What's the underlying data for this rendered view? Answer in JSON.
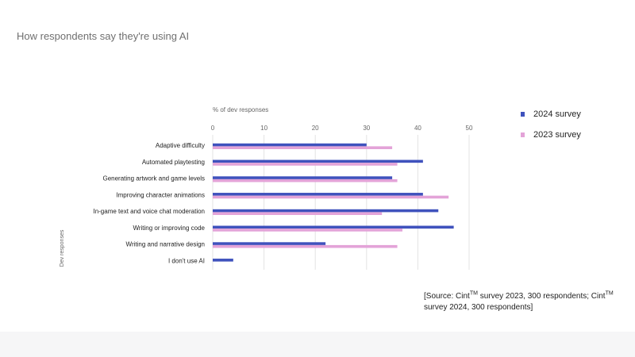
{
  "page_title": "How respondents say they're using AI",
  "colors": {
    "series_2024": "#3f52bd",
    "series_2023": "#e3a3d8",
    "grid": "#e3e3e3",
    "axis_text": "#666666"
  },
  "legend": {
    "items": [
      {
        "label": "2024 survey"
      },
      {
        "label": "2023 survey"
      }
    ]
  },
  "source": {
    "prefix": "[Source: Cint",
    "tm1": "TM",
    "middle": " survey 2023, 300 respondents; Cint",
    "tm2": "TM",
    "suffix": " survey 2024, 300 respondents]"
  },
  "chart_data": {
    "type": "bar",
    "orientation": "horizontal",
    "title": "How respondents say they're using AI",
    "xlabel": "% of dev responses",
    "ylabel": "Dev responses",
    "xlim": [
      0,
      50
    ],
    "xticks": [
      0,
      10,
      20,
      30,
      40,
      50
    ],
    "grid": true,
    "legend_position": "right",
    "categories": [
      "Adaptive difficulty",
      "Automated playtesting",
      "Generating artwork and game levels",
      "Improving character animations",
      "In-game text and voice chat moderation",
      "Writing or improving code",
      "Writing and narrative design",
      "I don't use AI"
    ],
    "series": [
      {
        "name": "2024 survey",
        "values": [
          30,
          41,
          35,
          41,
          44,
          47,
          22,
          4
        ]
      },
      {
        "name": "2023 survey",
        "values": [
          35,
          36,
          36,
          46,
          33,
          37,
          36,
          0
        ]
      }
    ]
  }
}
